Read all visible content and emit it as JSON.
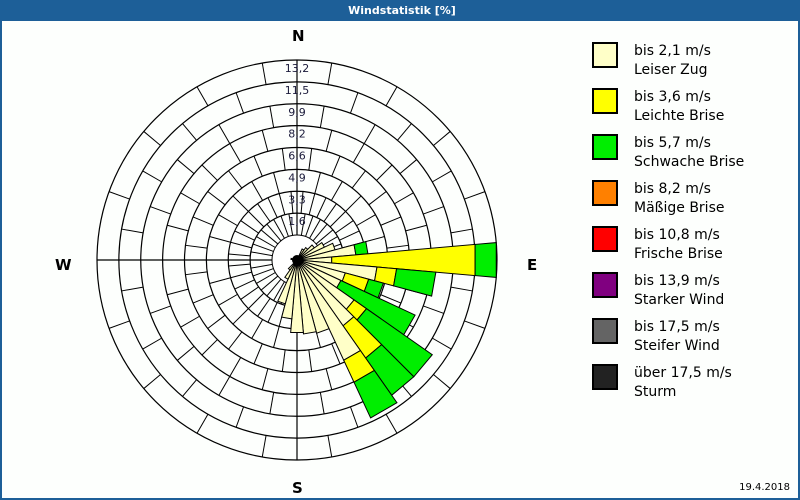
{
  "window": {
    "title": "Windstatistik [%]",
    "date": "19.4.2018"
  },
  "compass": {
    "n": "N",
    "e": "E",
    "s": "S",
    "w": "W"
  },
  "legend": [
    {
      "range": "bis 2,1 m/s",
      "name": "Leiser Zug",
      "color": "#ffffc8"
    },
    {
      "range": "bis 3,6 m/s",
      "name": "Leichte Brise",
      "color": "#ffff00"
    },
    {
      "range": "bis 5,7 m/s",
      "name": "Schwache Brise",
      "color": "#00ee00"
    },
    {
      "range": "bis 8,2 m/s",
      "name": "Mäßige Brise",
      "color": "#ff8000"
    },
    {
      "range": "bis 10,8 m/s",
      "name": "Frische Brise",
      "color": "#ff0000"
    },
    {
      "range": "bis 13,9 m/s",
      "name": "Starker Wind",
      "color": "#800080"
    },
    {
      "range": "bis 17,5 m/s",
      "name": "Steifer Wind",
      "color": "#646464"
    },
    {
      "range": "über 17,5 m/s",
      "name": "Sturm",
      "color": "#222222"
    }
  ],
  "chart_data": {
    "type": "wind-rose",
    "title": "Windstatistik [%]",
    "ring_labels": [
      "1,6",
      "3,3",
      "4,9",
      "6,6",
      "8,2",
      "9,9",
      "11,5",
      "13,2"
    ],
    "rmax": 13.2,
    "sector_width_deg": 10,
    "series_names": [
      "bis 2,1 m/s",
      "bis 3,6 m/s",
      "bis 5,7 m/s"
    ],
    "sectors": [
      {
        "dir": 30,
        "values": [
          0.8,
          0,
          0
        ]
      },
      {
        "dir": 40,
        "values": [
          1.0,
          0,
          0
        ]
      },
      {
        "dir": 50,
        "values": [
          1.4,
          0,
          0
        ]
      },
      {
        "dir": 60,
        "values": [
          2.0,
          0,
          0
        ]
      },
      {
        "dir": 70,
        "values": [
          2.6,
          0,
          0
        ]
      },
      {
        "dir": 80,
        "values": [
          3.9,
          0,
          0.8
        ]
      },
      {
        "dir": 90,
        "values": [
          2.3,
          9.5,
          1.4
        ]
      },
      {
        "dir": 100,
        "values": [
          5.3,
          1.3,
          2.6
        ]
      },
      {
        "dir": 110,
        "values": [
          3.3,
          1.6,
          1.0
        ]
      },
      {
        "dir": 120,
        "values": [
          3.2,
          0,
          5.4
        ]
      },
      {
        "dir": 130,
        "values": [
          4.6,
          1.0,
          5.3
        ]
      },
      {
        "dir": 140,
        "values": [
          5.3,
          2.6,
          3.0
        ]
      },
      {
        "dir": 150,
        "values": [
          7.3,
          1.6,
          2.6
        ]
      },
      {
        "dir": 160,
        "values": [
          5.0,
          0,
          0
        ]
      },
      {
        "dir": 170,
        "values": [
          4.9,
          0,
          0
        ]
      },
      {
        "dir": 180,
        "values": [
          4.8,
          0,
          0
        ]
      },
      {
        "dir": 190,
        "values": [
          3.9,
          0,
          0
        ]
      },
      {
        "dir": 200,
        "values": [
          3.0,
          0,
          0
        ]
      },
      {
        "dir": 210,
        "values": [
          1.4,
          0,
          0
        ]
      },
      {
        "dir": 220,
        "values": [
          0.8,
          0,
          0
        ]
      },
      {
        "dir": 280,
        "values": [
          0.4,
          0,
          0
        ]
      }
    ]
  }
}
